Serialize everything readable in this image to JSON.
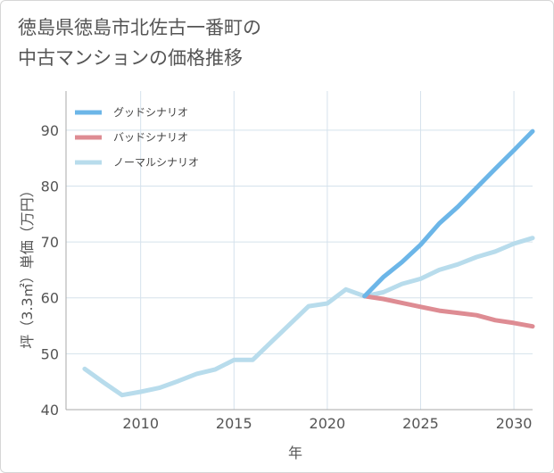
{
  "title_line1": "徳島県徳島市北佐古一番町の",
  "title_line2": "中古マンションの価格推移",
  "chart_data": {
    "type": "line",
    "xlabel": "年",
    "ylabel": "坪（3.3㎡）単価（万円）",
    "xlim": [
      2006,
      2031
    ],
    "ylim": [
      40,
      97
    ],
    "xticks": [
      2010,
      2015,
      2020,
      2025,
      2030
    ],
    "yticks": [
      40,
      50,
      60,
      70,
      80,
      90
    ],
    "grid": true,
    "legend_position": "top-left",
    "series": [
      {
        "name": "グッドシナリオ",
        "color": "#6cb6e8",
        "x": [
          2022,
          2023,
          2024,
          2025,
          2026,
          2027,
          2028,
          2029,
          2030,
          2031
        ],
        "y": [
          60.3,
          63.7,
          66.4,
          69.5,
          73.3,
          76.3,
          79.7,
          83.1,
          86.4,
          89.8
        ]
      },
      {
        "name": "バッドシナリオ",
        "color": "#de8c93",
        "x": [
          2022,
          2023,
          2024,
          2025,
          2026,
          2027,
          2028,
          2029,
          2030,
          2031
        ],
        "y": [
          60.3,
          59.8,
          59.1,
          58.4,
          57.7,
          57.3,
          56.9,
          56.0,
          55.5,
          54.9
        ]
      },
      {
        "name": "ノーマルシナリオ",
        "color": "#b8dcec",
        "x": [
          2007,
          2008,
          2009,
          2010,
          2011,
          2012,
          2013,
          2014,
          2015,
          2016,
          2017,
          2018,
          2019,
          2020,
          2021,
          2022,
          2023,
          2024,
          2025,
          2026,
          2027,
          2028,
          2029,
          2030,
          2031
        ],
        "y": [
          47.3,
          44.9,
          42.6,
          43.2,
          43.9,
          45.1,
          46.4,
          47.2,
          48.9,
          48.9,
          52.1,
          55.3,
          58.5,
          59.0,
          61.5,
          60.3,
          61.0,
          62.5,
          63.4,
          65.0,
          66.0,
          67.3,
          68.3,
          69.7,
          70.7
        ]
      }
    ]
  }
}
